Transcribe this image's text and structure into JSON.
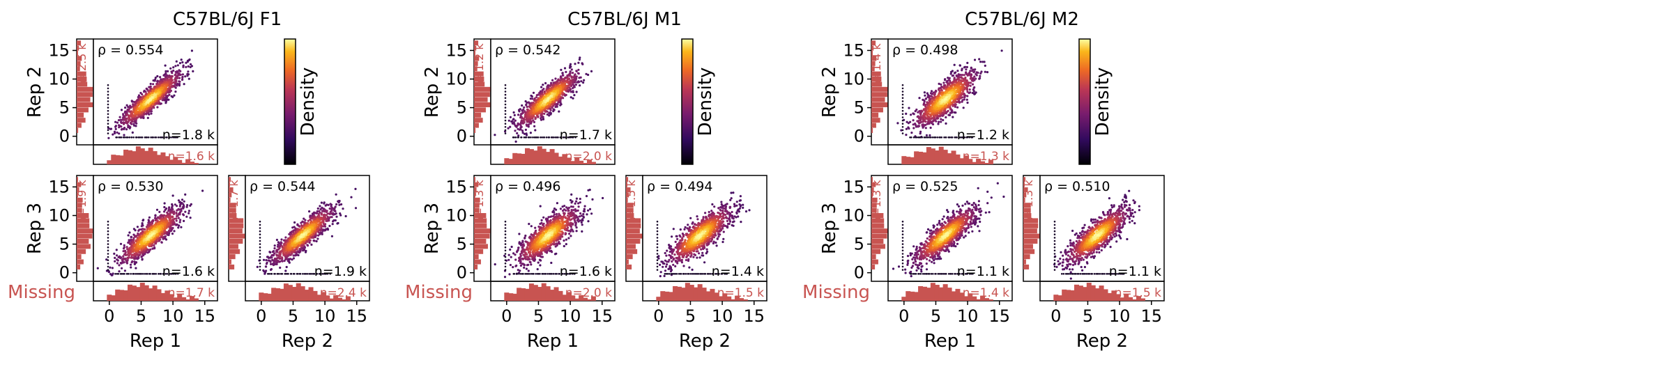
{
  "labels": {
    "missing": "Missing",
    "density": "Density",
    "colorbar_label": "Density",
    "rho_prefix": "ρ = ",
    "n_prefix": "n=",
    "ylabel_rep2": "Rep 2",
    "ylabel_rep3": "Rep 3",
    "xlabel_rep1": "Rep 1",
    "xlabel_rep2": "Rep 2"
  },
  "colors": {
    "missing": "#c85451",
    "colormap": "inferno",
    "axis": "#000000"
  },
  "chart_data": [
    {
      "type": "scatter",
      "title": "C57BL/6J F1",
      "axis_ticks": [
        0,
        5,
        10,
        15
      ],
      "xlim": [
        -2.5,
        17
      ],
      "ylim": [
        -1.5,
        17
      ],
      "panels": [
        {
          "row": "Rep 2",
          "col": "Rep 1",
          "xlabel": "Rep 1",
          "ylabel": "Rep 2",
          "rho": "0.554",
          "n_both": "1.8 k",
          "n_missing_x": "2.5 k",
          "n_missing_y": "1.6 k"
        },
        {
          "row": "Rep 3",
          "col": "Rep 1",
          "xlabel": "Rep 1",
          "ylabel": "Rep 3",
          "rho": "0.530",
          "n_both": "1.6 k",
          "n_missing_x": "1.9 k",
          "n_missing_y": "1.7 k"
        },
        {
          "row": "Rep 3",
          "col": "Rep 2",
          "xlabel": "Rep 2",
          "ylabel": "Rep 3",
          "rho": "0.544",
          "n_both": "1.9 k",
          "n_missing_x": "1.7 k",
          "n_missing_y": "2.4 k"
        }
      ]
    },
    {
      "type": "scatter",
      "title": "C57BL/6J M1",
      "axis_ticks": [
        0,
        5,
        10,
        15
      ],
      "xlim": [
        -2.5,
        17
      ],
      "ylim": [
        -1.5,
        17
      ],
      "panels": [
        {
          "row": "Rep 2",
          "col": "Rep 1",
          "xlabel": "Rep 1",
          "ylabel": "Rep 2",
          "rho": "0.542",
          "n_both": "1.7 k",
          "n_missing_x": "1.2 k",
          "n_missing_y": "2.0 k"
        },
        {
          "row": "Rep 3",
          "col": "Rep 1",
          "xlabel": "Rep 1",
          "ylabel": "Rep 3",
          "rho": "0.496",
          "n_both": "1.6 k",
          "n_missing_x": "1.3 k",
          "n_missing_y": "2.0 k"
        },
        {
          "row": "Rep 3",
          "col": "Rep 2",
          "xlabel": "Rep 2",
          "ylabel": "Rep 3",
          "rho": "0.494",
          "n_both": "1.4 k",
          "n_missing_x": "1.5 k",
          "n_missing_y": "1.5 k"
        }
      ]
    },
    {
      "type": "scatter",
      "title": "C57BL/6J M2",
      "axis_ticks": [
        0,
        5,
        10,
        15
      ],
      "xlim": [
        -2.5,
        17
      ],
      "ylim": [
        -1.5,
        17
      ],
      "panels": [
        {
          "row": "Rep 2",
          "col": "Rep 1",
          "xlabel": "Rep 1",
          "ylabel": "Rep 2",
          "rho": "0.498",
          "n_both": "1.2 k",
          "n_missing_x": "1.4 k",
          "n_missing_y": "1.3 k"
        },
        {
          "row": "Rep 3",
          "col": "Rep 1",
          "xlabel": "Rep 1",
          "ylabel": "Rep 3",
          "rho": "0.525",
          "n_both": "1.1 k",
          "n_missing_x": "1.3 k",
          "n_missing_y": "1.4 k"
        },
        {
          "row": "Rep 3",
          "col": "Rep 2",
          "xlabel": "Rep 2",
          "ylabel": "Rep 3",
          "rho": "0.510",
          "n_both": "1.1 k",
          "n_missing_x": "1.3 k",
          "n_missing_y": "1.5 k"
        }
      ]
    }
  ]
}
